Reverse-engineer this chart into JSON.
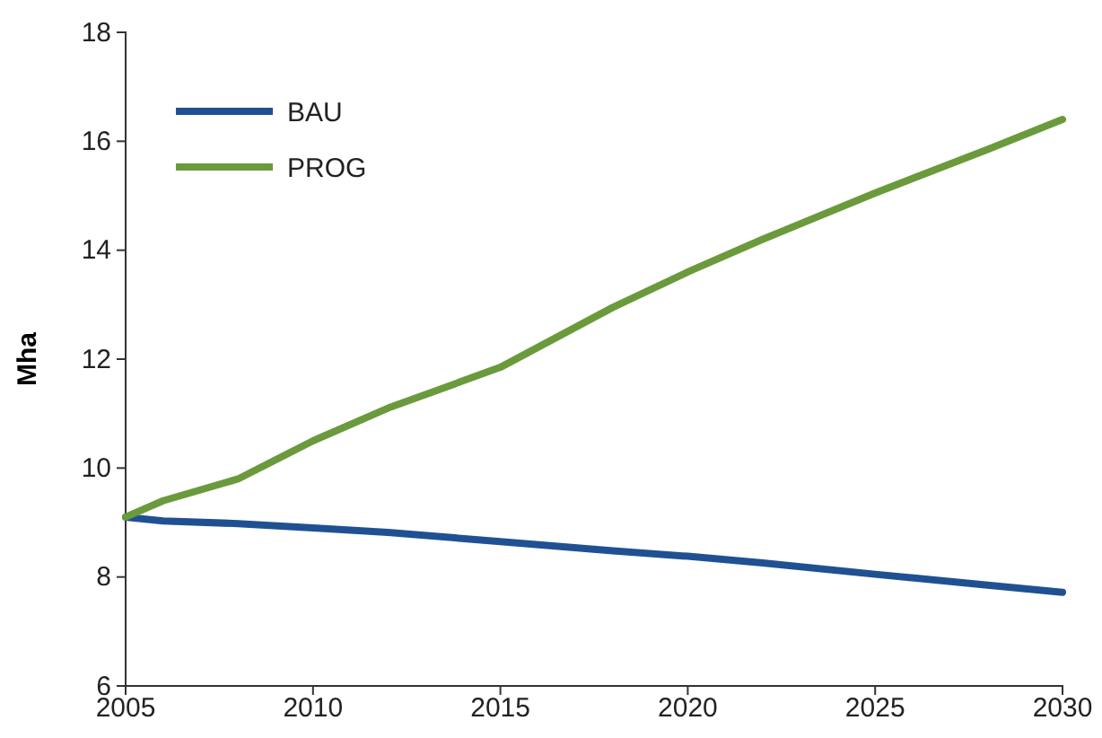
{
  "chart_data": {
    "type": "line",
    "ylabel": "Mha",
    "x": [
      2005,
      2006,
      2008,
      2010,
      2012,
      2015,
      2018,
      2020,
      2022,
      2025,
      2028,
      2030
    ],
    "series": [
      {
        "name": "BAU",
        "color": "#1f5192",
        "values": [
          9.1,
          9.03,
          8.98,
          8.9,
          8.82,
          8.65,
          8.48,
          8.38,
          8.26,
          8.05,
          7.85,
          7.72
        ]
      },
      {
        "name": "PROG",
        "color": "#6a9a3c",
        "values": [
          9.1,
          9.4,
          9.8,
          10.5,
          11.1,
          11.85,
          12.95,
          13.6,
          14.2,
          15.05,
          15.85,
          16.4
        ]
      }
    ],
    "xlim": [
      2005,
      2030
    ],
    "xticks": [
      2005,
      2010,
      2015,
      2020,
      2025,
      2030
    ],
    "ylim": [
      6,
      18
    ],
    "yticks": [
      6,
      8,
      10,
      12,
      14,
      16,
      18
    ],
    "legend": "top left",
    "grid": false,
    "marker": "none",
    "line_style": "solid"
  }
}
